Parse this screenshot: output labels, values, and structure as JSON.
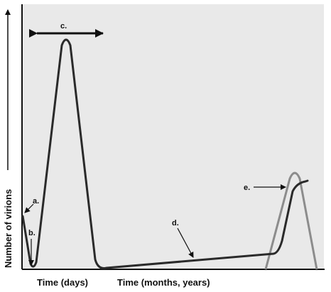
{
  "axes": {
    "y_label": "Number of virions",
    "x_label_days": "Time (days)",
    "x_label_years": "Time (months, years)"
  },
  "annotations": {
    "a": "a.",
    "b": "b.",
    "c": "c.",
    "d": "d.",
    "e": "e."
  },
  "colors": {
    "plot_background": "#e9e9e9",
    "curve_dark": "#2a2a2a",
    "curve_gray": "#8c8c8c",
    "axis": "#111111"
  }
}
